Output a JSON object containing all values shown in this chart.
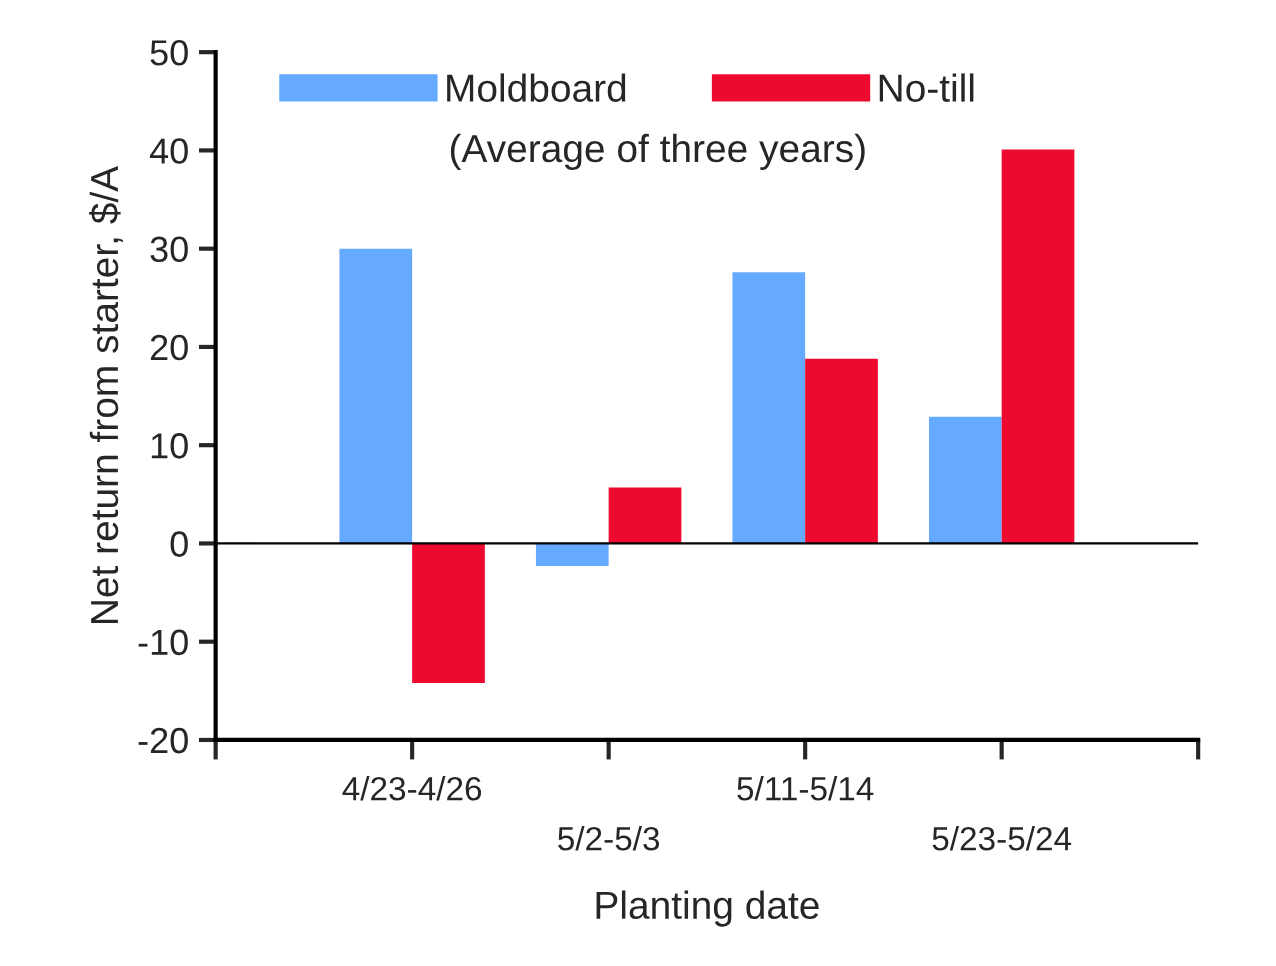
{
  "chart_data": {
    "type": "bar",
    "xlabel": "Planting date",
    "ylabel": "Net return from starter, $/A",
    "categories": [
      "4/23-4/26",
      "5/2-5/3",
      "5/11-5/14",
      "5/23-5/24"
    ],
    "series": [
      {
        "name": "Moldboard",
        "color": "#66aaff",
        "values": [
          30.0,
          -2.3,
          27.6,
          12.9
        ]
      },
      {
        "name": "No-till",
        "color": "#ee0a2e",
        "values": [
          -14.2,
          5.7,
          18.8,
          40.1
        ]
      }
    ],
    "annotations": [
      "(Average of three years)"
    ],
    "ylim": [
      -20,
      50
    ],
    "yticks": [
      -20,
      -10,
      0,
      10,
      20,
      30,
      40,
      50
    ],
    "ref_lines": [
      {
        "axis": "y",
        "value": 0,
        "color": "#000000"
      }
    ],
    "grid": false,
    "legend": "top"
  }
}
